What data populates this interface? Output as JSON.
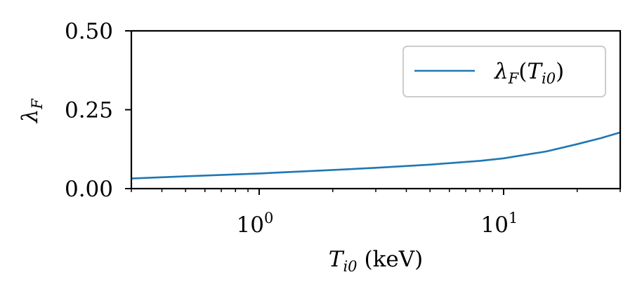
{
  "chart_data": {
    "type": "line",
    "xscale": "log",
    "xlim": [
      0.3,
      30
    ],
    "ylim": [
      0,
      0.5
    ],
    "grid": false,
    "legend_position": "top-right",
    "xlabel": "T_i0 (keV)",
    "xlabel_parts": {
      "symbol": "T",
      "subscript": "i0",
      "unit": "(keV)"
    },
    "ylabel": "λ_F",
    "ylabel_parts": {
      "symbol": "λ",
      "subscript": "F"
    },
    "y_ticks": [
      "0.00",
      "0.25",
      "0.50"
    ],
    "y_tick_values": [
      0,
      0.25,
      0.5
    ],
    "x_ticks": [
      {
        "value": 1,
        "base": "10",
        "exp": "0"
      },
      {
        "value": 10,
        "base": "10",
        "exp": "1"
      }
    ],
    "series": [
      {
        "name": "λ_F(T_i0)",
        "name_parts": {
          "symbol": "λ",
          "sub": "F",
          "open": "(",
          "arg": "T",
          "arg_sub": "i0",
          "close": ")"
        },
        "color": "#1f77b4",
        "x": [
          0.3,
          0.5,
          1,
          2,
          3,
          5,
          8,
          10,
          15,
          20,
          25,
          30
        ],
        "y": [
          0.032,
          0.039,
          0.048,
          0.059,
          0.066,
          0.076,
          0.088,
          0.096,
          0.118,
          0.141,
          0.16,
          0.178
        ]
      }
    ]
  }
}
